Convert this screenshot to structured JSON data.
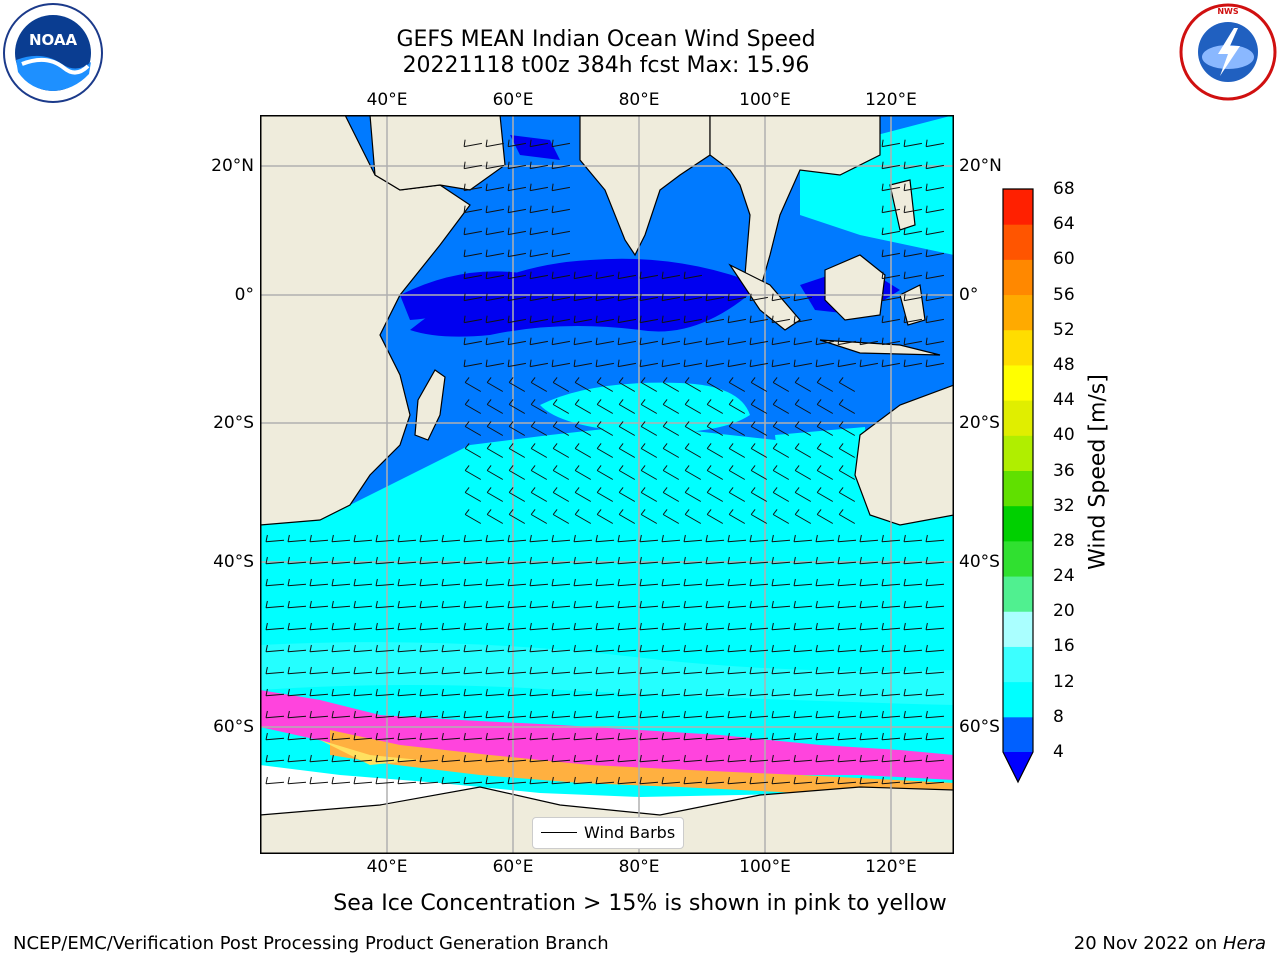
{
  "header": {
    "title_line1": "GEFS MEAN Indian Ocean Wind Speed",
    "title_line2": "20221118 t00z 384h fcst   Max: 15.96"
  },
  "logos": {
    "left": {
      "icon": "noaa-logo-icon",
      "text": "NOAA"
    },
    "right": {
      "icon": "nws-logo-icon",
      "text": "NATIONAL WEATHER SERVICE"
    }
  },
  "map": {
    "region": "Indian Ocean",
    "lon_range": [
      20,
      129
    ],
    "lat_range": [
      -75,
      27
    ],
    "lon_ticks": [
      "40°E",
      "60°E",
      "80°E",
      "100°E",
      "120°E"
    ],
    "lat_ticks": [
      "20°N",
      "0°",
      "20°S",
      "40°S",
      "60°S"
    ],
    "gridlines": true,
    "colors": {
      "land": "#efecdc",
      "ice": "#ffffff",
      "low": "#0000f0",
      "mid": "#007aff",
      "high": "#00ffff"
    },
    "legend": {
      "label": "Wind Barbs"
    }
  },
  "colorbar": {
    "label": "Wind Speed [m/s]",
    "ticks": [
      "4",
      "8",
      "12",
      "16",
      "20",
      "24",
      "28",
      "32",
      "36",
      "40",
      "44",
      "48",
      "52",
      "56",
      "60",
      "64",
      "68"
    ],
    "colors": [
      "#0060ff",
      "#00ffff",
      "#3cffff",
      "#aaffff",
      "#50f090",
      "#30e030",
      "#00d000",
      "#60e000",
      "#b0ee00",
      "#e0ee00",
      "#ffff00",
      "#ffdd00",
      "#ffaa00",
      "#ff8800",
      "#ff5500",
      "#ff2000"
    ],
    "extend_color": "#0000ff"
  },
  "subtitle": "Sea Ice Concentration > 15% is shown in pink to yellow",
  "footer": {
    "left": "NCEP/EMC/Verification Post Processing Product Generation Branch",
    "right_date": "20 Nov 2022 on ",
    "right_host": "Hera"
  }
}
